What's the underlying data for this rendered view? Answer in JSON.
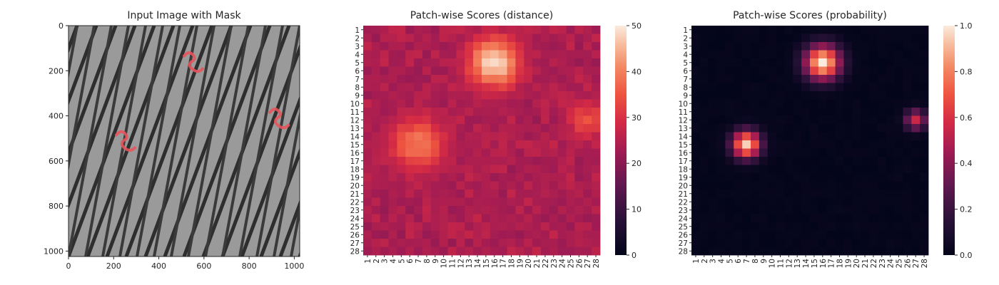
{
  "chart_data": [
    {
      "type": "image",
      "title": "Input Image with Mask",
      "xlim": [
        0,
        1024
      ],
      "ylim": [
        1024,
        0
      ],
      "xticks": [
        0,
        200,
        400,
        600,
        800,
        1000
      ],
      "yticks": [
        0,
        200,
        400,
        600,
        800,
        1000
      ],
      "mask_color": "#e8535b",
      "background_color": "#9a9a9a",
      "mesh_color": "#2e2e2e",
      "mask_centers": [
        [
          550,
          160
        ],
        [
          930,
          410
        ],
        [
          250,
          510
        ]
      ]
    },
    {
      "type": "heatmap",
      "title": "Patch-wise Scores (distance)",
      "rows": 28,
      "cols": 28,
      "tick_labels": [
        "1",
        "2",
        "3",
        "4",
        "5",
        "6",
        "7",
        "8",
        "9",
        "10",
        "11",
        "12",
        "13",
        "14",
        "15",
        "16",
        "17",
        "18",
        "19",
        "20",
        "21",
        "22",
        "23",
        "24",
        "25",
        "26",
        "27",
        "28"
      ],
      "colorbar": {
        "min": 0,
        "max": 50,
        "ticks": [
          0,
          10,
          20,
          30,
          40,
          50
        ],
        "colormap": "rocket"
      },
      "baseline": 23,
      "hotspots": [
        {
          "row": 5,
          "col": 16,
          "peak": 49,
          "radius": 2.1
        },
        {
          "row": 15,
          "col": 7,
          "peak": 39,
          "radius": 2.3
        },
        {
          "row": 12,
          "col": 27,
          "peak": 34,
          "radius": 1.6
        }
      ]
    },
    {
      "type": "heatmap",
      "title": "Patch-wise Scores (probability)",
      "rows": 28,
      "cols": 28,
      "tick_labels": [
        "1",
        "2",
        "3",
        "4",
        "5",
        "6",
        "7",
        "8",
        "9",
        "10",
        "11",
        "12",
        "13",
        "14",
        "15",
        "16",
        "17",
        "18",
        "19",
        "20",
        "21",
        "22",
        "23",
        "24",
        "25",
        "26",
        "27",
        "28"
      ],
      "colorbar": {
        "min": 0,
        "max": 1,
        "ticks": [
          "0.0",
          "0.2",
          "0.4",
          "0.6",
          "0.8",
          "1.0"
        ],
        "colormap": "rocket"
      },
      "baseline": 0.0,
      "hotspots": [
        {
          "row": 5,
          "col": 16,
          "peak": 1.0,
          "radius": 1.5
        },
        {
          "row": 15,
          "col": 7,
          "peak": 0.95,
          "radius": 1.2
        },
        {
          "row": 12,
          "col": 27,
          "peak": 0.55,
          "radius": 0.9
        }
      ]
    }
  ]
}
